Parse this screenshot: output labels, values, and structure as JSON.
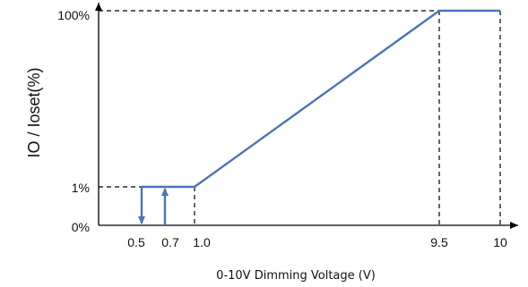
{
  "chart_data": {
    "type": "line",
    "title": "",
    "xlabel": "0-10V Dimming Voltage (V)",
    "ylabel": "IO / Ioset(%)",
    "x_tick_labels": [
      "0.5",
      "0.7",
      "1.0",
      "9.5",
      "10"
    ],
    "y_tick_labels": [
      "100%",
      "1%",
      "0%"
    ],
    "series": [
      {
        "x": [
          0.5,
          1.0,
          9.5,
          10
        ],
        "y": [
          "1%",
          "1%",
          "100%",
          "100%"
        ]
      }
    ],
    "hysteresis": [
      {
        "from_y": "1%",
        "to_y": "0%",
        "at_x": 0.5,
        "direction": "down"
      },
      {
        "from_y": "0%",
        "to_y": "1%",
        "at_x": 0.7,
        "direction": "up"
      }
    ],
    "reference_lines": [
      {
        "type": "horizontal",
        "y": "100%",
        "x_end": 9.5,
        "style": "dashed"
      },
      {
        "type": "horizontal",
        "y": "1%",
        "x_end": 0.5,
        "style": "dashed"
      },
      {
        "type": "vertical",
        "x": 1.0,
        "y_end": "1%",
        "style": "dashed"
      },
      {
        "type": "vertical",
        "x": 9.5,
        "y_end": "100%",
        "style": "dashed"
      },
      {
        "type": "vertical",
        "x": 10,
        "y_end": "100%",
        "style": "dashed"
      }
    ],
    "grid": false,
    "line_color": "#4a74b8",
    "axis_color": "#000000"
  }
}
